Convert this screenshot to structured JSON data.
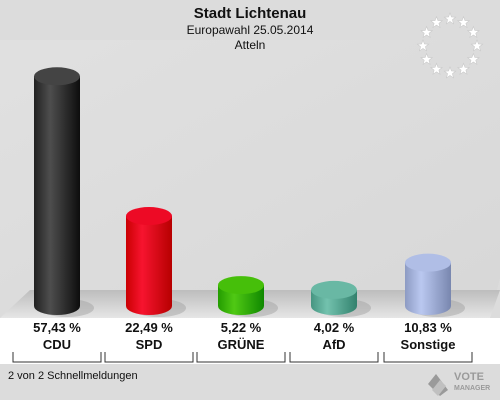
{
  "header": {
    "title": "Stadt Lichtenau",
    "subtitle": "Europawahl 25.05.2014",
    "location": "Atteln"
  },
  "footer": {
    "status_text": "2 von 2 Schnellmeldungen"
  },
  "logo": {
    "line1": "VOTE",
    "line2": "MANAGER"
  },
  "chart_data": {
    "type": "bar",
    "categories": [
      "CDU",
      "SPD",
      "GRÜNE",
      "AfD",
      "Sonstige"
    ],
    "values": [
      57.43,
      22.49,
      5.22,
      4.02,
      10.83
    ],
    "value_labels": [
      "57,43 %",
      "22,49 %",
      "5,22 %",
      "4,02 %",
      "10,83 %"
    ],
    "colors": [
      "#3a3a3a",
      "#e3001b",
      "#3cb500",
      "#5fae9a",
      "#a6b4dc"
    ],
    "ylim": [
      0,
      60
    ],
    "grid": false,
    "legend": "none"
  }
}
